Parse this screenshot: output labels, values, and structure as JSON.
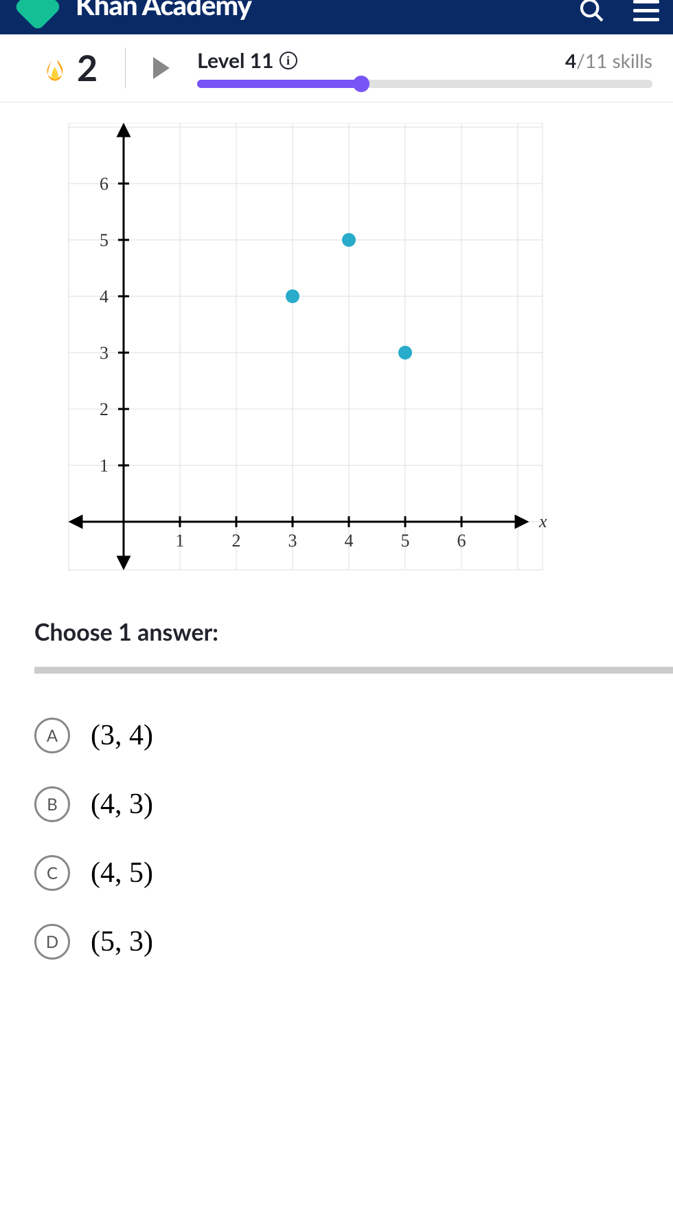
{
  "header": {
    "brand": "Khan Academy"
  },
  "streak": {
    "count": "2"
  },
  "level": {
    "label": "Level 11",
    "skills_done": "4",
    "skills_total": "/11 skills",
    "progress_percent": 36
  },
  "chart": {
    "type": "scatter",
    "xlim": [
      0,
      7
    ],
    "ylim": [
      0,
      7
    ],
    "xticks": [
      1,
      2,
      3,
      4,
      5,
      6
    ],
    "yticks": [
      1,
      2,
      3,
      4,
      5,
      6
    ],
    "x_axis_label": "x",
    "points": [
      {
        "x": 3,
        "y": 4
      },
      {
        "x": 4,
        "y": 5
      },
      {
        "x": 5,
        "y": 3
      }
    ],
    "point_color": "#29abca",
    "point_radius": 10,
    "grid_color": "#dddddd",
    "axis_color": "#000000",
    "tick_label_fontsize": 26,
    "background_color": "#ffffff"
  },
  "prompt": "Choose 1 answer:",
  "choices": [
    {
      "letter": "A",
      "text": "(3, 4)"
    },
    {
      "letter": "B",
      "text": "(4, 3)"
    },
    {
      "letter": "C",
      "text": "(4, 5)"
    },
    {
      "letter": "D",
      "text": "(5, 3)"
    }
  ]
}
